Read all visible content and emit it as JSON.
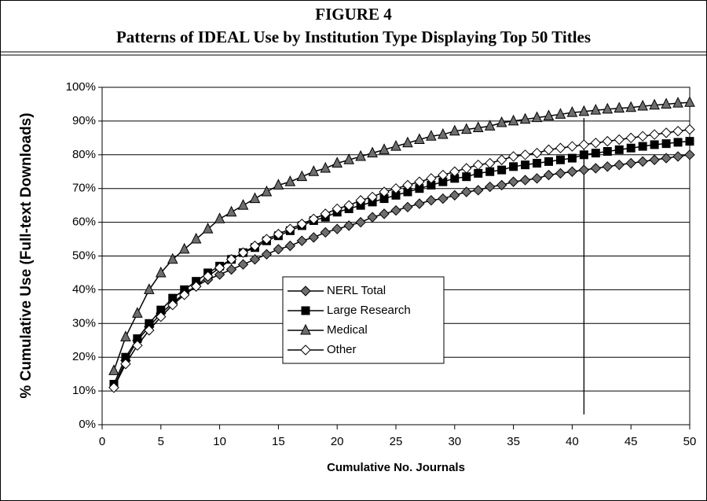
{
  "chart_data": {
    "type": "line",
    "title": "FIGURE 4",
    "subtitle": "Patterns of IDEAL Use by Institution Type Displaying Top 50 Titles",
    "x_label": "Cumulative No. Journals",
    "y_label": "% Cumulative Use (Full-text Downloads)",
    "x": [
      1,
      2,
      3,
      4,
      5,
      6,
      7,
      8,
      9,
      10,
      11,
      12,
      13,
      14,
      15,
      16,
      17,
      18,
      19,
      20,
      21,
      22,
      23,
      24,
      25,
      26,
      27,
      28,
      29,
      30,
      31,
      32,
      33,
      34,
      35,
      36,
      37,
      38,
      39,
      40,
      41,
      42,
      43,
      44,
      45,
      46,
      47,
      48,
      49,
      50
    ],
    "series": [
      {
        "name": "NERL Total",
        "color": "#6e6e6e",
        "marker": "diamond",
        "values": [
          11,
          19,
          25,
          29,
          33,
          36,
          39,
          41,
          43,
          44.5,
          46,
          47.5,
          49,
          50.5,
          52,
          53,
          54.5,
          55.5,
          57,
          58,
          59,
          60,
          61.5,
          62.5,
          63.5,
          64.5,
          65.5,
          66.5,
          67,
          68,
          69,
          69.5,
          70.5,
          71,
          72,
          72.5,
          73,
          74,
          74.5,
          75,
          75.5,
          76,
          76.5,
          77,
          77.5,
          78,
          78.5,
          79,
          79.5,
          80
        ]
      },
      {
        "name": "Large Research",
        "color": "#000000",
        "marker": "square",
        "values": [
          12,
          20,
          25.5,
          30,
          34,
          37.5,
          40,
          42.5,
          45,
          47,
          49,
          51,
          52.5,
          54.5,
          56,
          57.5,
          59,
          60.5,
          61.5,
          63,
          64,
          65,
          66,
          67,
          68,
          69,
          70,
          71,
          72,
          73,
          73.5,
          74.5,
          75,
          75.5,
          76.5,
          77,
          77.5,
          78,
          78.5,
          79,
          80,
          80.5,
          81,
          81.5,
          82,
          82.5,
          83,
          83.3,
          83.7,
          84
        ]
      },
      {
        "name": "Medical",
        "color": "#6e6e6e",
        "marker": "triangle",
        "values": [
          16,
          26,
          33,
          40,
          45,
          49,
          52,
          55,
          58,
          61,
          63,
          65,
          67,
          69,
          71,
          72,
          73.5,
          75,
          76,
          77.5,
          78.5,
          79.5,
          80.5,
          81.5,
          82.5,
          83.5,
          84.5,
          85.5,
          86,
          87,
          87.5,
          88,
          88.5,
          89.5,
          90,
          90.5,
          91,
          91.5,
          92,
          92.5,
          92.8,
          93.2,
          93.5,
          93.8,
          94,
          94.4,
          94.7,
          95,
          95.3,
          95.5
        ]
      },
      {
        "name": "Other",
        "color": "#ffffff",
        "marker": "diamond",
        "values": [
          11,
          18,
          23.5,
          28,
          32,
          35.5,
          38.5,
          41,
          44,
          46.5,
          49,
          51,
          53,
          55,
          56.5,
          58,
          59.5,
          61,
          62.5,
          64,
          65,
          66.5,
          67.5,
          69,
          70,
          71,
          72,
          73,
          74,
          75,
          76,
          77,
          77.5,
          78.5,
          79.5,
          80,
          80.5,
          81.5,
          82,
          82.5,
          83,
          83.5,
          84,
          84.5,
          85,
          85.5,
          86,
          86.5,
          87,
          87.5
        ]
      }
    ],
    "xlim": [
      0,
      50
    ],
    "xticks": [
      0,
      5,
      10,
      15,
      20,
      25,
      30,
      35,
      40,
      45,
      50
    ],
    "ylim": [
      0,
      100
    ],
    "yticks": [
      {
        "value": 0,
        "label": "0%"
      },
      {
        "value": 10,
        "label": "10%"
      },
      {
        "value": 20,
        "label": "20%"
      },
      {
        "value": 30,
        "label": "30%"
      },
      {
        "value": 40,
        "label": "40%"
      },
      {
        "value": 50,
        "label": "50%"
      },
      {
        "value": 60,
        "label": "60%"
      },
      {
        "value": 70,
        "label": "70%"
      },
      {
        "value": 80,
        "label": "80%"
      },
      {
        "value": 90,
        "label": "90%"
      },
      {
        "value": 100,
        "label": "100%"
      }
    ],
    "grid": true,
    "reference_line_x": 41,
    "legend": "center"
  }
}
